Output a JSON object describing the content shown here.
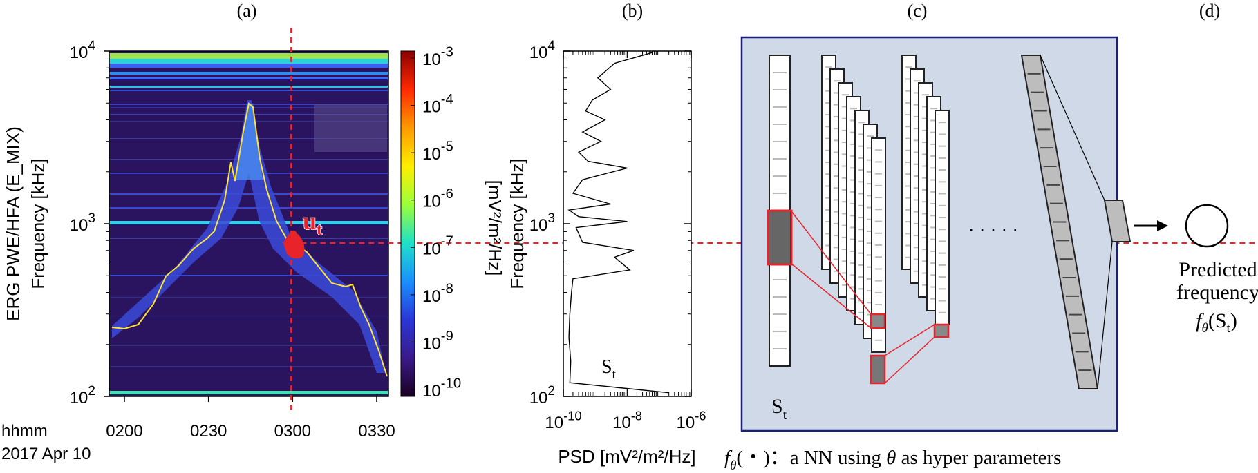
{
  "panels": {
    "a": "(a)",
    "b": "(b)",
    "c": "(c)",
    "d": "(d)"
  },
  "chart_data": [
    {
      "type": "heatmap",
      "panel": "a",
      "ylabel_line1": "ERG PWE/HFA (E_MIX)",
      "ylabel_line2": "Frequency [kHz]",
      "y_scale": "log",
      "ylim": [
        100,
        10000
      ],
      "yticks": [
        {
          "base": "10",
          "exp": "2",
          "value": 100
        },
        {
          "base": "10",
          "exp": "3",
          "value": 1000
        },
        {
          "base": "10",
          "exp": "4",
          "value": 10000
        }
      ],
      "xticks": [
        "0200",
        "0230",
        "0300",
        "0330"
      ],
      "x_label_line1": "hhmm",
      "x_label_line2": "2017 Apr 10",
      "marker_label": "u",
      "marker_sub": "t",
      "marker_time": "0300",
      "marker_frequency_khz": 780,
      "colorbar": {
        "label": "[mV²/m²/Hz]",
        "ticks": [
          {
            "base": "10",
            "exp": "-3"
          },
          {
            "base": "10",
            "exp": "-4"
          },
          {
            "base": "10",
            "exp": "-5"
          },
          {
            "base": "10",
            "exp": "-6"
          },
          {
            "base": "10",
            "exp": "-7"
          },
          {
            "base": "10",
            "exp": "-8"
          },
          {
            "base": "10",
            "exp": "-9"
          },
          {
            "base": "10",
            "exp": "-10"
          }
        ],
        "colors": [
          "#8b0000",
          "#ff2a00",
          "#ff9900",
          "#ffee00",
          "#9cff3a",
          "#1fe0c8",
          "#1a90ff",
          "#2a36d8",
          "#3a1a8a",
          "#1a0020"
        ]
      },
      "colors": {
        "background": "#2a1460",
        "trace": "#ffe23a",
        "marker": "#e8232a"
      }
    },
    {
      "type": "line",
      "panel": "b",
      "ylabel": "Frequency [kHz]",
      "y_scale": "log",
      "x_scale": "log",
      "ylim": [
        100,
        10000
      ],
      "xlim": [
        1e-10,
        1e-06
      ],
      "xlabel": "PSD [mV²/m²/Hz]",
      "xticks": [
        {
          "base": "10",
          "exp": "-10"
        },
        {
          "base": "10",
          "exp": "-8"
        },
        {
          "base": "10",
          "exp": "-6"
        }
      ],
      "yticks": [
        {
          "base": "10",
          "exp": "2"
        },
        {
          "base": "10",
          "exp": "3"
        },
        {
          "base": "10",
          "exp": "4"
        }
      ],
      "annotation": "S",
      "annotation_sub": "t",
      "series": [
        {
          "x": [
            6e-08,
            4e-09,
            1.2e-09,
            3e-09,
            8e-10,
            5e-10,
            2e-09,
            4e-10,
            1.5e-09,
            3e-10,
            6e-10,
            1e-08,
            4e-10,
            2e-10,
            3e-09,
            1.5e-10,
            3e-10,
            1e-08,
            2.5e-10,
            4e-10,
            1.6e-08,
            4e-09,
            1.2e-08,
            2e-10,
            1.8e-10,
            1.6e-10,
            1.5e-10,
            1.7e-10,
            1.6e-10,
            2e-07
          ],
          "y": [
            9800,
            8500,
            7000,
            6000,
            5200,
            4500,
            4000,
            3400,
            3000,
            2600,
            2300,
            2100,
            1800,
            1500,
            1300,
            1200,
            1100,
            1030,
            950,
            780,
            700,
            640,
            540,
            480,
            400,
            300,
            220,
            160,
            120,
            105
          ]
        }
      ]
    }
  ],
  "diagram": {
    "input_label": "S",
    "input_sub": "t",
    "dots": "· · · · ·",
    "output_label_line1": "Predicted",
    "output_label_line2": "frequency",
    "output_formula": "f",
    "output_formula_sub": "θ",
    "output_formula_arg": "(S",
    "output_formula_arg_sub": "t",
    "output_formula_close": ")",
    "caption_f": "f",
    "caption_sub": "θ",
    "caption_rest_1": "(・)：a NN using ",
    "caption_theta": "θ",
    "caption_rest_2": " as hyper parameters",
    "colors": {
      "background": "#d0d9e8",
      "border": "#1a1f7a",
      "highlight": "#e8232a"
    }
  }
}
